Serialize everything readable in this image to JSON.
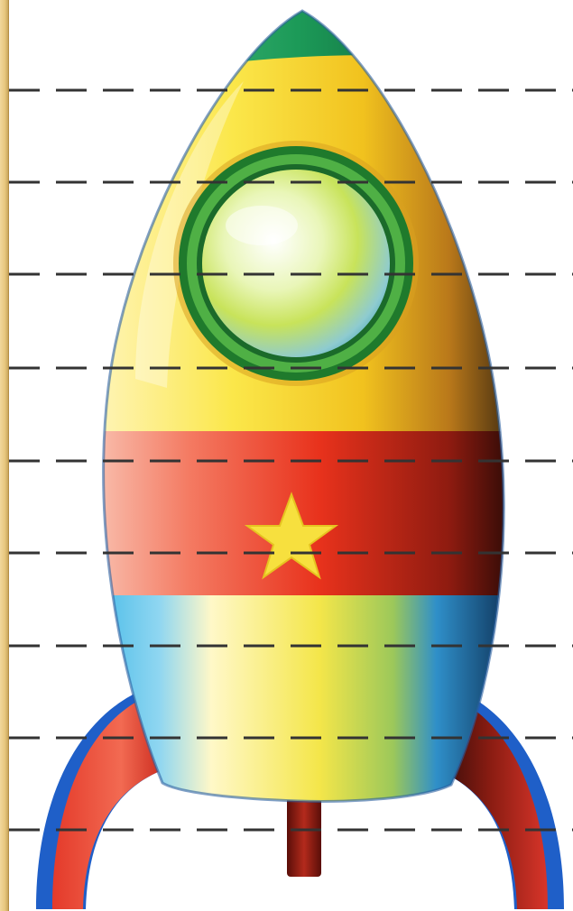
{
  "picture": {
    "subject": "cartoon-rocket",
    "colors": {
      "body_yellow": "#f6e23a",
      "band_red": "#e8321c",
      "star_yellow": "#f7e03e",
      "window_green": "#2f9a3a",
      "nose_green": "#1c9a58",
      "fin_red": "#e43a2a",
      "fin_blue": "#1f5fc8",
      "side_blue": "#3bb6e6",
      "exhaust_red": "#9e1a12",
      "guide_line": "#333333",
      "frame_tan": "#e8c77e"
    },
    "guide_line_count": 9
  }
}
